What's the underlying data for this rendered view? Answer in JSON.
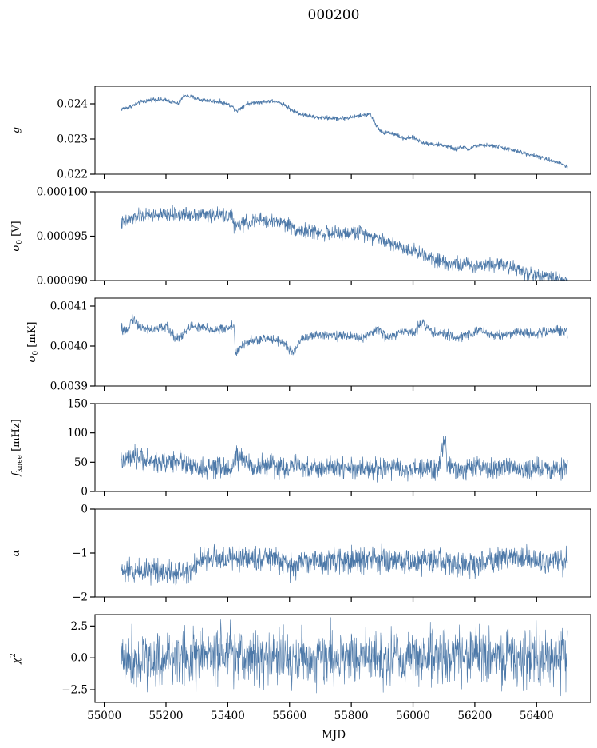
{
  "title": "000200",
  "xlabel": "MJD",
  "chart_data": [
    {
      "type": "line",
      "ylabel": "g",
      "ylim": [
        0.022,
        0.0245
      ],
      "yticks": [
        "0.022",
        "0.023",
        "0.024"
      ],
      "ytick_values": [
        0.022,
        0.023,
        0.024
      ],
      "noise": 3e-05,
      "width": 0.8,
      "x": [
        55055,
        55080,
        55120,
        55160,
        55200,
        55240,
        55260,
        55280,
        55310,
        55350,
        55380,
        55410,
        55430,
        55460,
        55500,
        55540,
        55580,
        55610,
        55640,
        55680,
        55720,
        55760,
        55790,
        55820,
        55860,
        55880,
        55900,
        55920,
        55950,
        55970,
        56000,
        56030,
        56070,
        56100,
        56140,
        56160,
        56180,
        56200,
        56240,
        56280,
        56320,
        56360,
        56400,
        56440,
        56470,
        56500
      ],
      "y": [
        0.02385,
        0.0239,
        0.02405,
        0.02413,
        0.0241,
        0.024,
        0.02425,
        0.0242,
        0.02412,
        0.02408,
        0.02405,
        0.02395,
        0.0238,
        0.024,
        0.02405,
        0.02408,
        0.024,
        0.0238,
        0.0237,
        0.02362,
        0.0236,
        0.02358,
        0.0236,
        0.02365,
        0.02372,
        0.0234,
        0.02318,
        0.0232,
        0.0231,
        0.023,
        0.02305,
        0.0229,
        0.02285,
        0.02282,
        0.0227,
        0.02278,
        0.0227,
        0.0228,
        0.02282,
        0.02278,
        0.02268,
        0.0226,
        0.02252,
        0.0224,
        0.02235,
        0.0222
      ]
    },
    {
      "type": "line",
      "ylabel": "σ0 [V]",
      "ylim": [
        9e-05,
        0.0001
      ],
      "yticks": [
        "0.000090",
        "0.000095",
        "0.000100"
      ],
      "ytick_values": [
        9e-05,
        9.5e-05,
        0.0001
      ],
      "noise": 4e-07,
      "width": 0.7,
      "x": [
        55055,
        55080,
        55120,
        55200,
        55280,
        55350,
        55415,
        55420,
        55460,
        55500,
        55540,
        55570,
        55600,
        55630,
        55680,
        55720,
        55760,
        55800,
        55840,
        55870,
        55900,
        55930,
        55960,
        56000,
        56040,
        56080,
        56120,
        56160,
        56200,
        56240,
        56280,
        56320,
        56360,
        56400,
        56450,
        56500
      ],
      "y": [
        9.64e-05,
        9.68e-05,
        9.73e-05,
        9.74e-05,
        9.75e-05,
        9.74e-05,
        9.73e-05,
        9.61e-05,
        9.65e-05,
        9.68e-05,
        9.67e-05,
        9.66e-05,
        9.62e-05,
        9.56e-05,
        9.55e-05,
        9.53e-05,
        9.52e-05,
        9.54e-05,
        9.54e-05,
        9.5e-05,
        9.46e-05,
        9.42e-05,
        9.38e-05,
        9.34e-05,
        9.29e-05,
        9.23e-05,
        9.2e-05,
        9.18e-05,
        9.17e-05,
        9.19e-05,
        9.2e-05,
        9.15e-05,
        9.1e-05,
        9.06e-05,
        9.03e-05,
        9e-05
      ]
    },
    {
      "type": "line",
      "ylabel": "σ0 [mK]",
      "ylim": [
        0.0039,
        0.00412
      ],
      "yticks": [
        "0.0039",
        "0.0040",
        "0.0041"
      ],
      "ytick_values": [
        0.0039,
        0.004,
        0.0041
      ],
      "noise": 6e-06,
      "width": 0.7,
      "x": [
        55055,
        55070,
        55090,
        55120,
        55160,
        55200,
        55230,
        55250,
        55280,
        55320,
        55360,
        55400,
        55420,
        55425,
        55460,
        55500,
        55540,
        55580,
        55610,
        55640,
        55680,
        55720,
        55760,
        55800,
        55830,
        55860,
        55880,
        55920,
        55960,
        56000,
        56030,
        56060,
        56100,
        56140,
        56180,
        56220,
        56260,
        56300,
        56340,
        56380,
        56420,
        56460,
        56500
      ],
      "y": [
        0.004045,
        0.00403,
        0.00407,
        0.004045,
        0.00404,
        0.00405,
        0.00402,
        0.004025,
        0.00405,
        0.004045,
        0.00404,
        0.004045,
        0.004055,
        0.00398,
        0.00401,
        0.004015,
        0.00402,
        0.00401,
        0.00398,
        0.00402,
        0.004025,
        0.00403,
        0.004025,
        0.004025,
        0.00402,
        0.004025,
        0.004045,
        0.00402,
        0.004035,
        0.004035,
        0.00406,
        0.004035,
        0.00403,
        0.00402,
        0.00403,
        0.00404,
        0.004025,
        0.00403,
        0.004035,
        0.00403,
        0.004035,
        0.00404,
        0.004035
      ]
    },
    {
      "type": "line",
      "ylabel": "f_knee [mHz]",
      "ylim": [
        0,
        150
      ],
      "yticks": [
        "0",
        "50",
        "100",
        "150"
      ],
      "ytick_values": [
        0,
        50,
        100,
        150
      ],
      "noise": 9,
      "width": 0.7,
      "x": [
        55055,
        55080,
        55110,
        55150,
        55200,
        55240,
        55280,
        55320,
        55360,
        55400,
        55420,
        55425,
        55460,
        55500,
        55540,
        55580,
        55620,
        55660,
        55700,
        55740,
        55780,
        55820,
        55860,
        55900,
        55905,
        55910,
        55950,
        56000,
        56040,
        56080,
        56105,
        56110,
        56140,
        56180,
        56220,
        56260,
        56300,
        56340,
        56380,
        56420,
        56460,
        56500
      ],
      "y": [
        50,
        55,
        58,
        52,
        48,
        55,
        40,
        38,
        40,
        38,
        44,
        62,
        48,
        42,
        45,
        40,
        44,
        40,
        38,
        40,
        42,
        38,
        42,
        35,
        45,
        40,
        38,
        36,
        38,
        40,
        92,
        38,
        40,
        38,
        40,
        36,
        42,
        40,
        38,
        40,
        36,
        40
      ]
    },
    {
      "type": "line",
      "ylabel": "α",
      "ylim": [
        -2,
        0
      ],
      "yticks": [
        "−2",
        "−1",
        "0"
      ],
      "ytick_values": [
        -2,
        -1,
        0
      ],
      "noise": 0.14,
      "width": 0.7,
      "x": [
        55055,
        55100,
        55160,
        55200,
        55240,
        55280,
        55320,
        55360,
        55400,
        55440,
        55480,
        55520,
        55560,
        55580,
        55600,
        55620,
        55660,
        55700,
        55740,
        55780,
        55820,
        55860,
        55900,
        55910,
        55950,
        56000,
        56040,
        56080,
        56120,
        56160,
        56200,
        56240,
        56280,
        56320,
        56360,
        56400,
        56440,
        56500
      ],
      "y": [
        -1.4,
        -1.42,
        -1.35,
        -1.4,
        -1.45,
        -1.35,
        -1.15,
        -1.1,
        -1.15,
        -1.1,
        -1.12,
        -1.1,
        -1.15,
        -1.25,
        -1.32,
        -1.28,
        -1.15,
        -1.2,
        -1.18,
        -1.15,
        -1.2,
        -1.15,
        -1.12,
        -1.25,
        -1.18,
        -1.2,
        -1.15,
        -1.2,
        -1.25,
        -1.28,
        -1.25,
        -1.2,
        -1.1,
        -1.05,
        -1.15,
        -1.2,
        -1.18,
        -1.2
      ]
    },
    {
      "type": "line",
      "ylabel": "χ²",
      "ylim": [
        -3.5,
        3.4
      ],
      "yticks": [
        "−2.5",
        "0.0",
        "2.5"
      ],
      "ytick_values": [
        -2.5,
        0,
        2.5
      ],
      "noise": 1.1,
      "width": 0.6,
      "x": [
        55055,
        55200,
        55400,
        55600,
        55800,
        55905,
        55910,
        56000,
        56200,
        56400,
        56500
      ],
      "y": [
        0,
        0,
        0.1,
        0,
        0,
        0,
        0,
        0,
        0.1,
        0,
        0
      ]
    }
  ],
  "xaxis": {
    "range": [
      54970,
      56575
    ],
    "ticks": [
      "55000",
      "55200",
      "55400",
      "55600",
      "55800",
      "56000",
      "56200",
      "56400"
    ],
    "tick_values": [
      55000,
      55200,
      55400,
      55600,
      55800,
      56000,
      56200,
      56400
    ]
  }
}
